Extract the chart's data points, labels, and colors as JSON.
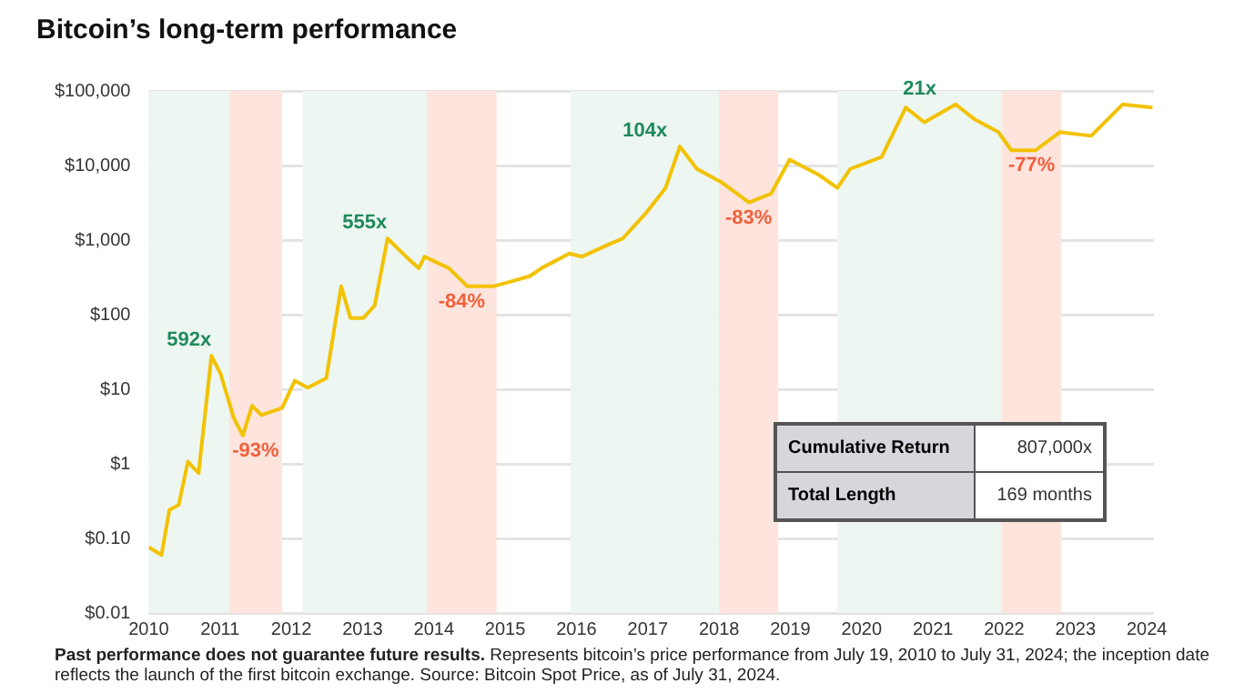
{
  "chart_data": {
    "type": "line",
    "title": "Bitcoin’s long-term performance",
    "x": [
      2010.0,
      2010.18,
      2010.29,
      2010.42,
      2010.55,
      2010.7,
      2010.88,
      2011.01,
      2011.19,
      2011.32,
      2011.45,
      2011.58,
      2011.87,
      2012.05,
      2012.23,
      2012.49,
      2012.7,
      2012.83,
      2013.01,
      2013.17,
      2013.35,
      2013.61,
      2013.79,
      2013.87,
      2014.21,
      2014.47,
      2014.83,
      2015.09,
      2015.35,
      2015.51,
      2015.9,
      2016.08,
      2016.47,
      2016.65,
      2016.99,
      2017.25,
      2017.45,
      2017.69,
      2018.03,
      2018.42,
      2018.73,
      2018.99,
      2019.4,
      2019.66,
      2019.84,
      2020.28,
      2020.62,
      2020.88,
      2021.32,
      2021.58,
      2021.92,
      2022.1,
      2022.44,
      2022.78,
      2023.22,
      2023.66,
      2024.08
    ],
    "series": [
      {
        "color": "#f2c200",
        "values": [
          0.076,
          0.06,
          0.24,
          0.28,
          1.07,
          0.75,
          28,
          16,
          4.2,
          2.4,
          6,
          4.5,
          5.6,
          13,
          10.5,
          14,
          240,
          90,
          90,
          133,
          1050,
          600,
          420,
          600,
          420,
          240,
          240,
          280,
          330,
          420,
          660,
          600,
          890,
          1050,
          2400,
          5000,
          18000,
          9000,
          6000,
          3200,
          4200,
          12000,
          7500,
          5000,
          9000,
          13000,
          60000,
          38000,
          66000,
          42000,
          28000,
          16000,
          16000,
          28000,
          25000,
          66000,
          60000
        ]
      }
    ],
    "log": "y",
    "grid": "y",
    "legend": false,
    "marker": "none",
    "xlim": [
      2010,
      2024.1
    ],
    "xticks": [
      2010,
      2011,
      2012,
      2013,
      2014,
      2015,
      2016,
      2017,
      2018,
      2019,
      2020,
      2021,
      2022,
      2023,
      2024
    ],
    "ylim": [
      0.01,
      100000
    ],
    "yticks": [
      {
        "value": 0.01,
        "label": "$0.01"
      },
      {
        "value": 0.1,
        "label": "$0.10"
      },
      {
        "value": 1,
        "label": "$1"
      },
      {
        "value": 10,
        "label": "$10"
      },
      {
        "value": 100,
        "label": "$100"
      },
      {
        "value": 1000,
        "label": "$1,000"
      },
      {
        "value": 10000,
        "label": "$10,000"
      },
      {
        "value": 100000,
        "label": "$100,000"
      }
    ],
    "bands": [
      {
        "axis": "x",
        "from": 2010.0,
        "to": 2011.13,
        "label": "592x",
        "color": "#edf6f1"
      },
      {
        "axis": "x",
        "from": 2011.13,
        "to": 2011.87,
        "label": "-93%",
        "color": "#fde4dd"
      },
      {
        "axis": "x",
        "from": 2012.16,
        "to": 2013.9,
        "label": "555x",
        "color": "#edf6f1"
      },
      {
        "axis": "x",
        "from": 2013.9,
        "to": 2014.88,
        "label": "-84%",
        "color": "#fde4dd"
      },
      {
        "axis": "x",
        "from": 2015.92,
        "to": 2018.0,
        "label": "104x",
        "color": "#edf6f1"
      },
      {
        "axis": "x",
        "from": 2018.0,
        "to": 2018.83,
        "label": "-83%",
        "color": "#fde4dd"
      },
      {
        "axis": "x",
        "from": 2019.66,
        "to": 2021.97,
        "label": "21x",
        "color": "#edf6f1"
      },
      {
        "axis": "x",
        "from": 2021.97,
        "to": 2022.8,
        "label": "-77%",
        "color": "#fde4dd"
      }
    ],
    "annotations": [
      "Cumulative Return",
      "807,000x",
      "Total Length",
      "169 months",
      "Past performance does not guarantee future results.",
      "Represents bitcoin’s price performance from July 19, 2010 to July 31, 2024; the inception date reflects the launch of the first bitcoin exchange. Source: Bitcoin Spot Price, as of July 31, 2024."
    ]
  }
}
